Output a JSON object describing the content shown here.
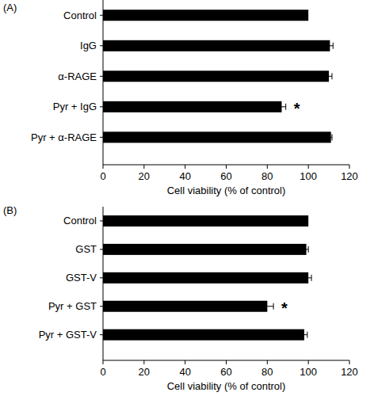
{
  "chart_data": [
    {
      "type": "bar",
      "orientation": "horizontal",
      "title": "(A)",
      "x_label": "Cell viability (% of control)",
      "categories": [
        "Control",
        "IgG",
        "α-RAGE",
        "Pyr + IgG",
        "Pyr + α-RAGE"
      ],
      "values": [
        100,
        110.5,
        110,
        87,
        111
      ],
      "errors": [
        0,
        1.5,
        1.5,
        2,
        0.5
      ],
      "color": "#000000",
      "xlim": [
        0,
        120
      ],
      "xticks": [
        0,
        20,
        40,
        60,
        80,
        100,
        120
      ],
      "grid": false,
      "annotations": [
        {
          "text": "*",
          "index": 3
        }
      ]
    },
    {
      "type": "bar",
      "orientation": "horizontal",
      "title": "(B)",
      "x_label": "Cell viability (% of control)",
      "categories": [
        "Control",
        "GST",
        "GST-V",
        "Pyr + GST",
        "Pyr + GST-V"
      ],
      "values": [
        100,
        99,
        100,
        80,
        98
      ],
      "errors": [
        0,
        1,
        1.5,
        3,
        1.5
      ],
      "color": "#000000",
      "xlim": [
        0,
        120
      ],
      "xticks": [
        0,
        20,
        40,
        60,
        80,
        100,
        120
      ],
      "grid": false,
      "annotations": [
        {
          "text": "*",
          "index": 3
        }
      ]
    }
  ]
}
